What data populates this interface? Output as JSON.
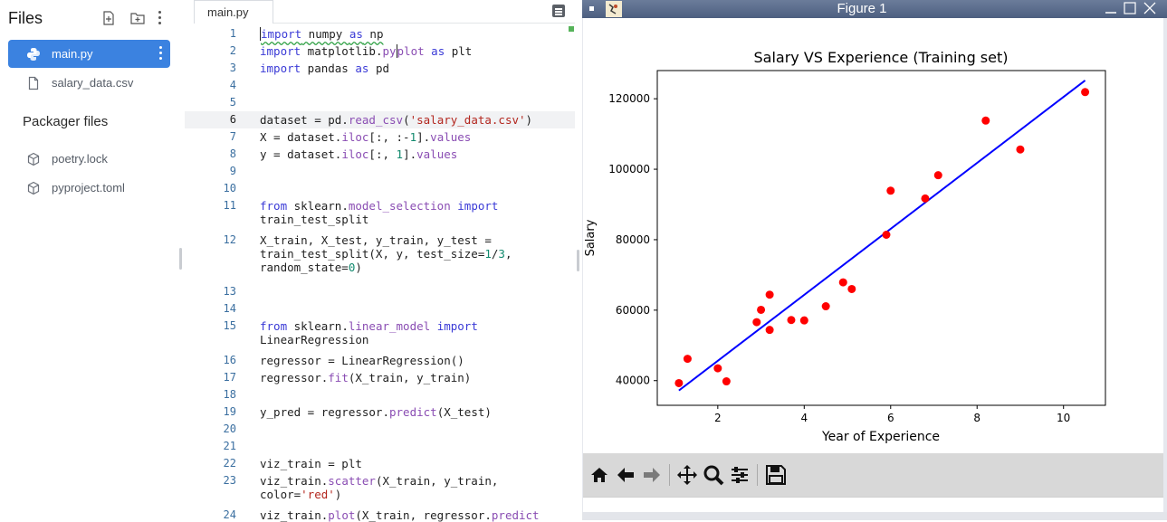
{
  "sidebar": {
    "title": "Files",
    "files": [
      {
        "name": "main.py",
        "active": true
      },
      {
        "name": "salary_data.csv",
        "active": false
      }
    ],
    "packager_label": "Packager files",
    "packager_files": [
      {
        "name": "poetry.lock"
      },
      {
        "name": "pyproject.toml"
      }
    ]
  },
  "editor": {
    "tab_label": "main.py",
    "current_line": 6,
    "lines": [
      {
        "n": "1",
        "y": 30
      },
      {
        "n": "2",
        "y": 49
      },
      {
        "n": "3",
        "y": 68
      },
      {
        "n": "4",
        "y": 87
      },
      {
        "n": "5",
        "y": 106
      },
      {
        "n": "6",
        "y": 125
      },
      {
        "n": "7",
        "y": 144
      },
      {
        "n": "8",
        "y": 163
      },
      {
        "n": "9",
        "y": 182
      },
      {
        "n": "10",
        "y": 201
      },
      {
        "n": "11",
        "y": 220
      },
      {
        "n": "12",
        "y": 258
      },
      {
        "n": "13",
        "y": 315
      },
      {
        "n": "14",
        "y": 334
      },
      {
        "n": "15",
        "y": 353
      },
      {
        "n": "16",
        "y": 391
      },
      {
        "n": "17",
        "y": 410
      },
      {
        "n": "18",
        "y": 429
      },
      {
        "n": "19",
        "y": 448
      },
      {
        "n": "20",
        "y": 467
      },
      {
        "n": "21",
        "y": 486
      },
      {
        "n": "22",
        "y": 505
      },
      {
        "n": "23",
        "y": 524
      },
      {
        "n": "24",
        "y": 562
      }
    ]
  },
  "figure": {
    "window_title": "Figure 1",
    "accent_dot_color": "#ff0000",
    "line_color": "#0000ff"
  },
  "chart_data": {
    "type": "scatter",
    "title": "Salary VS Experience (Training set)",
    "xlabel": "Year of Experience",
    "ylabel": "Salary",
    "xlim": [
      0.6,
      10.97
    ],
    "ylim": [
      33000,
      128000
    ],
    "xticks": [
      2,
      4,
      6,
      8,
      10
    ],
    "yticks": [
      40000,
      60000,
      80000,
      100000,
      120000
    ],
    "grid": false,
    "series": [
      {
        "kind": "scatter",
        "color": "#ff0000",
        "points": [
          [
            1.1,
            39300
          ],
          [
            1.3,
            46200
          ],
          [
            2.0,
            43500
          ],
          [
            2.2,
            39800
          ],
          [
            2.9,
            56600
          ],
          [
            3.0,
            60100
          ],
          [
            3.2,
            54400
          ],
          [
            3.2,
            64400
          ],
          [
            3.7,
            57200
          ],
          [
            4.0,
            57100
          ],
          [
            4.5,
            61100
          ],
          [
            4.9,
            67900
          ],
          [
            5.1,
            66000
          ],
          [
            5.9,
            81400
          ],
          [
            6.0,
            93900
          ],
          [
            6.8,
            91700
          ],
          [
            7.1,
            98300
          ],
          [
            8.2,
            113800
          ],
          [
            9.0,
            105600
          ],
          [
            10.5,
            121900
          ]
        ]
      },
      {
        "kind": "line",
        "color": "#0000ff",
        "points": [
          [
            1.1,
            37200
          ],
          [
            10.5,
            125200
          ]
        ]
      }
    ]
  }
}
